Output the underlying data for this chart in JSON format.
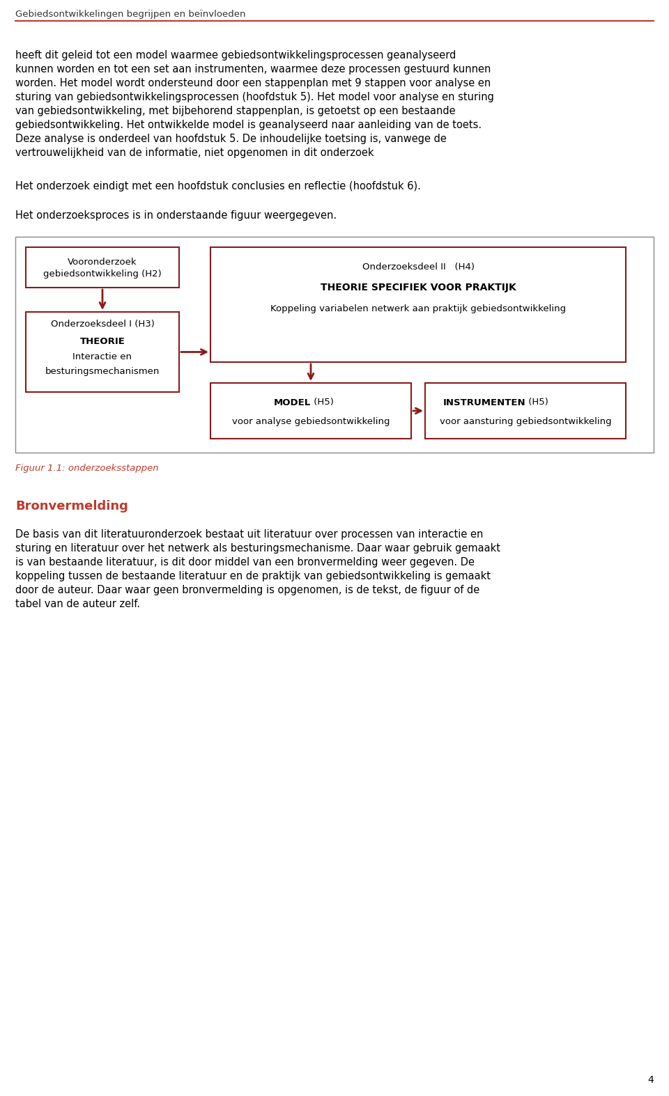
{
  "page_bg": "#ffffff",
  "header_text": "Gebiedsontwikkelingen begrijpen en beïnvloeden",
  "header_line_color": "#c0392b",
  "header_font_size": 9.5,
  "body_text_color": "#000000",
  "body_font_size": 10.5,
  "paragraph1_lines": [
    "heeft dit geleid tot een model waarmee gebiedsontwikkelingsprocessen geanalyseerd",
    "kunnen worden en tot een set aan instrumenten, waarmee deze processen gestuurd kunnen",
    "worden. Het model wordt ondersteund door een stappenplan met 9 stappen voor analyse en",
    "sturing van gebiedsontwikkelingsprocessen (hoofdstuk 5). Het model voor analyse en sturing",
    "van gebiedsontwikkeling, met bijbehorend stappenplan, is getoetst op een bestaande",
    "gebiedsontwikkeling. Het ontwikkelde model is geanalyseerd naar aanleiding van de toets.",
    "Deze analyse is onderdeel van hoofdstuk 5. De inhoudelijke toetsing is, vanwege de",
    "vertrouwelijkheid van de informatie, niet opgenomen in dit onderzoek"
  ],
  "paragraph2": "Het onderzoek eindigt met een hoofdstuk conclusies en reflectie (hoofdstuk 6).",
  "paragraph3": "Het onderzoeksproces is in onderstaande figuur weergegeven.",
  "figure_caption": "Figuur 1.1: onderzoeksstappen",
  "figure_caption_color": "#c0392b",
  "section_title": "Bronvermelding",
  "section_title_color": "#c0392b",
  "section_title_fontsize": 13,
  "paragraph4_lines": [
    "De basis van dit literatuuronderzoek bestaat uit literatuur over processen van interactie en",
    "sturing en literatuur over het netwerk als besturingsmechanisme. Daar waar gebruik gemaakt",
    "is van bestaande literatuur, is dit door middel van een bronvermelding weer gegeven. De",
    "koppeling tussen de bestaande literatuur en de praktijk van gebiedsontwikkeling is gemaakt",
    "door de auteur. Daar waar geen bronvermelding is opgenomen, is de tekst, de figuur of de",
    "tabel van de auteur zelf."
  ],
  "page_number": "4",
  "box_border_color": "#8b1a1a",
  "arrow_color": "#8b1a1a",
  "outer_box_color": "#888888",
  "box1_line1": "Vooronderzoek",
  "box1_line2": "gebiedsontwikkeling (H2)",
  "box2_line1": "Onderzoeksdeel I (H3)",
  "box2_line2": "THEORIE",
  "box2_line3": "Interactie en",
  "box2_line4": "besturingsmechanismen",
  "box3_line1": "Onderzoeksdeel II   (H4)",
  "box3_line2": "THEORIE SPECIFIEK VOOR PRAKTIJK",
  "box3_line3": "Koppeling variabelen netwerk aan praktijk gebiedsontwikkeling",
  "box4_bold": "MODEL",
  "box4_h5": " (H5)",
  "box4_normal": "voor analyse gebiedsontwikkeling",
  "box5_bold": "INSTRUMENTEN",
  "box5_h5": " (H5)",
  "box5_normal": "voor aansturing gebiedsontwikkeling"
}
